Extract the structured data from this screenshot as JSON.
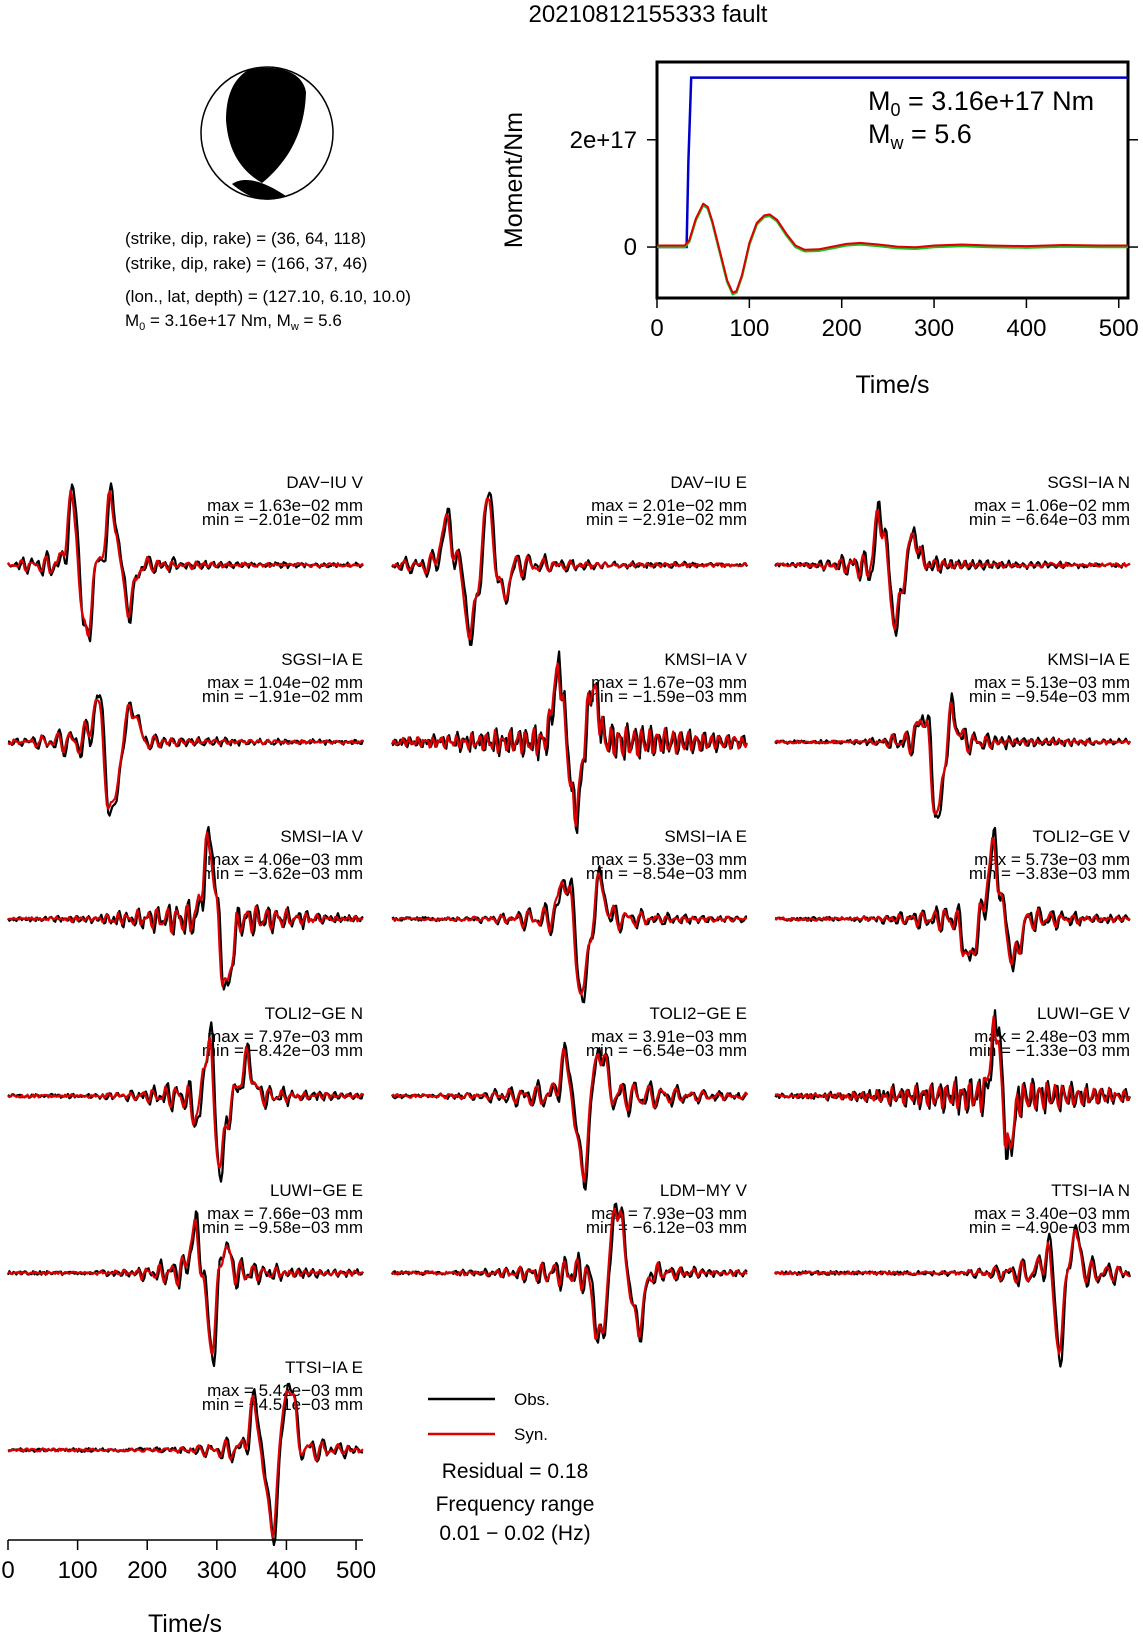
{
  "title": "20210812155333 fault",
  "source": {
    "nodal1": "(strike, dip, rake) = (36, 64, 118)",
    "nodal2": "(strike, dip, rake) = (166, 37, 46)",
    "location": "(lon., lat, depth) = (127.10, 6.10, 10.0)",
    "m0_label": "M",
    "m0_sub": "0",
    "m0_text": " = 3.16e+17 Nm, M",
    "mw_sub": "w",
    "mw_text": " = 5.6"
  },
  "legend": {
    "obs": "Obs.",
    "syn": "Syn.",
    "residual": "Residual = 0.18",
    "freq_title": "Frequency range",
    "freq_range": "0.01 − 0.02 (Hz)"
  },
  "colors": {
    "obs": "#000000",
    "syn": "#dd0000",
    "cumulative": "#0000cc",
    "rate_alt": "#22bb22"
  },
  "chart_data": [
    {
      "type": "line",
      "title": "",
      "xlabel": "Time/s",
      "ylabel": "Moment/Nm",
      "xlim": [
        0,
        510
      ],
      "ylim": [
        -9.5e+16,
        3.45e+17
      ],
      "xticks": [
        "0",
        "100",
        "200",
        "300",
        "400",
        "500"
      ],
      "yticks": [
        {
          "v": 0,
          "label": "0"
        },
        {
          "v": 2e+17,
          "label": "2e+17"
        }
      ],
      "annotation": {
        "m0_main": "M",
        "m0_sub": "0",
        "m0_rest": " = 3.16e+17 Nm",
        "mw_main": "M",
        "mw_sub": "w",
        "mw_rest": " = 5.6"
      },
      "series": [
        {
          "role": "cumulative",
          "x": [
            0,
            32,
            34,
            37,
            510
          ],
          "y": [
            0,
            0,
            1.6e+17,
            3.16e+17,
            3.16e+17
          ]
        },
        {
          "role": "rate",
          "x": [
            0,
            30,
            35,
            42,
            50,
            55,
            60,
            68,
            76,
            82,
            86,
            92,
            100,
            108,
            116,
            122,
            130,
            140,
            150,
            160,
            175,
            190,
            205,
            220,
            240,
            260,
            280,
            300,
            330,
            360,
            400,
            440,
            480,
            510
          ],
          "y": [
            0,
            0,
            1e+16,
            5e+16,
            7.8e+16,
            7.2e+16,
            4.5e+16,
            -1e+16,
            -6.5e+16,
            -8.8e+16,
            -8.5e+16,
            -5.5e+16,
            5000000000000000.0,
            4.2e+16,
            5.6e+16,
            5.8e+16,
            4.8e+16,
            2.2e+16,
            0.0,
            -8000000000000000.0,
            -7000000000000000.0,
            -2000000000000000.0,
            3000000000000000.0,
            5000000000000000.0,
            2000000000000000.0,
            -2000000000000000.0,
            -3000000000000000.0,
            0.0,
            2000000000000000.0,
            0.0,
            -1000000000000000.0,
            1000000000000000.0,
            0.0,
            0.0
          ]
        }
      ]
    },
    {
      "type": "line",
      "title": "",
      "xlabel": "Time/s",
      "xlim": [
        0,
        510
      ],
      "xticks": [
        "0",
        "100",
        "200",
        "300",
        "400",
        "500"
      ],
      "series": [
        {
          "name": "Obs."
        },
        {
          "name": "Syn."
        }
      ],
      "panels": [
        {
          "station": "DAV−IU V",
          "max": "max = 1.63e−02 mm",
          "min": "min = −2.01e−02 mm",
          "seed": 1,
          "c": 125,
          "w": 80,
          "f": 0.055,
          "spike": [
            {
              "t": 95,
              "a": 1.0
            },
            {
              "t": 112,
              "a": -1.1
            },
            {
              "t": 150,
              "a": 0.9
            },
            {
              "t": 175,
              "a": -0.6
            }
          ]
        },
        {
          "station": "DAV−IU E",
          "max": "max = 2.01e−02 mm",
          "min": "min = −2.91e−02 mm",
          "seed": 2,
          "c": 130,
          "w": 90,
          "f": 0.05,
          "spike": [
            {
              "t": 80,
              "a": 0.6
            },
            {
              "t": 115,
              "a": -1.0
            },
            {
              "t": 140,
              "a": 0.9
            },
            {
              "t": 160,
              "a": -0.5
            }
          ]
        },
        {
          "station": "SGSI−IA N",
          "max": "max = 1.06e−02 mm",
          "min": "min = −6.64e−03 mm",
          "seed": 3,
          "c": 160,
          "w": 60,
          "f": 0.06,
          "spike": [
            {
              "t": 145,
              "a": -0.5
            },
            {
              "t": 150,
              "a": 1.1
            },
            {
              "t": 175,
              "a": -0.8
            },
            {
              "t": 200,
              "a": 0.4
            }
          ]
        },
        {
          "station": "SGSI−IA E",
          "max": "max = 1.04e−02 mm",
          "min": "min = −1.91e−02 mm",
          "seed": 4,
          "c": 130,
          "w": 70,
          "f": 0.05,
          "spike": [
            {
              "t": 130,
              "a": 0.6
            },
            {
              "t": 150,
              "a": -1.1
            },
            {
              "t": 180,
              "a": 0.5
            }
          ]
        },
        {
          "station": "KMSI−IA V",
          "max": "max = 1.67e−03 mm",
          "min": "min = −1.59e−03 mm",
          "seed": 5,
          "c": 300,
          "w": 200,
          "f": 0.09,
          "spike": [
            {
              "t": 240,
              "a": 1.0
            },
            {
              "t": 265,
              "a": -1.0
            },
            {
              "t": 290,
              "a": 0.8
            }
          ]
        },
        {
          "station": "KMSI−IA E",
          "max": "max = 5.13e−03 mm",
          "min": "min = −9.54e−03 mm",
          "seed": 6,
          "c": 235,
          "w": 60,
          "f": 0.06,
          "spike": [
            {
              "t": 215,
              "a": 0.4
            },
            {
              "t": 235,
              "a": -1.1
            },
            {
              "t": 255,
              "a": 0.4
            }
          ]
        },
        {
          "station": "SMSI−IA V",
          "max": "max = 4.06e−03 mm",
          "min": "min = −3.62e−03 mm",
          "seed": 7,
          "c": 300,
          "w": 120,
          "f": 0.07,
          "spike": [
            {
              "t": 290,
              "a": 1.1
            },
            {
              "t": 315,
              "a": -1.0
            }
          ]
        },
        {
          "station": "SMSI−IA E",
          "max": "max = 5.33e−03 mm",
          "min": "min = −8.54e−03 mm",
          "seed": 8,
          "c": 270,
          "w": 80,
          "f": 0.05,
          "spike": [
            {
              "t": 250,
              "a": 0.6
            },
            {
              "t": 275,
              "a": -1.1
            },
            {
              "t": 300,
              "a": 0.5
            }
          ]
        },
        {
          "station": "TOLI2−GE V",
          "max": "max = 5.73e−03 mm",
          "min": "min = −3.83e−03 mm",
          "seed": 9,
          "c": 310,
          "w": 100,
          "f": 0.06,
          "spike": [
            {
              "t": 280,
              "a": -0.6
            },
            {
              "t": 315,
              "a": 1.0
            },
            {
              "t": 345,
              "a": -0.6
            }
          ]
        },
        {
          "station": "TOLI2−GE N",
          "max": "max = 7.97e−03 mm",
          "min": "min = −8.42e−03 mm",
          "seed": 10,
          "c": 300,
          "w": 90,
          "f": 0.06,
          "spike": [
            {
              "t": 275,
              "a": -0.4
            },
            {
              "t": 290,
              "a": 1.0
            },
            {
              "t": 305,
              "a": -1.1
            },
            {
              "t": 345,
              "a": 0.5
            }
          ]
        },
        {
          "station": "TOLI2−GE E",
          "max": "max = 3.91e−03 mm",
          "min": "min = −6.54e−03 mm",
          "seed": 11,
          "c": 300,
          "w": 120,
          "f": 0.05,
          "spike": [
            {
              "t": 250,
              "a": 0.5
            },
            {
              "t": 275,
              "a": -1.1
            },
            {
              "t": 300,
              "a": 0.7
            }
          ]
        },
        {
          "station": "LUWI−GE V",
          "max": "max = 2.48e−03 mm",
          "min": "min = −1.33e−03 mm",
          "seed": 12,
          "c": 330,
          "w": 160,
          "f": 0.09,
          "spike": [
            {
              "t": 320,
              "a": 1.1
            },
            {
              "t": 335,
              "a": -0.9
            }
          ]
        },
        {
          "station": "LUWI−GE E",
          "max": "max = 7.66e−03 mm",
          "min": "min = −9.58e−03 mm",
          "seed": 13,
          "c": 290,
          "w": 80,
          "f": 0.06,
          "spike": [
            {
              "t": 270,
              "a": 0.6
            },
            {
              "t": 295,
              "a": -1.1
            },
            {
              "t": 310,
              "a": 0.5
            }
          ]
        },
        {
          "station": "LDM−MY V",
          "max": "max = 7.93e−03 mm",
          "min": "min = −6.12e−03 mm",
          "seed": 14,
          "c": 300,
          "w": 100,
          "f": 0.06,
          "spike": [
            {
              "t": 300,
              "a": -1.0
            },
            {
              "t": 325,
              "a": 1.0
            },
            {
              "t": 355,
              "a": -0.8
            }
          ]
        },
        {
          "station": "TTSI−IA N",
          "max": "max = 3.40e−03 mm",
          "min": "min = −4.90e−03 mm",
          "seed": 15,
          "c": 410,
          "w": 80,
          "f": 0.05,
          "spike": [
            {
              "t": 395,
              "a": 0.4
            },
            {
              "t": 410,
              "a": -1.1
            },
            {
              "t": 430,
              "a": 0.6
            }
          ]
        },
        {
          "station": "TTSI−IA E",
          "max": "max = 5.42e−03 mm",
          "min": "min = −4.51e−03 mm",
          "seed": 16,
          "c": 380,
          "w": 80,
          "f": 0.05,
          "spike": [
            {
              "t": 355,
              "a": 0.6
            },
            {
              "t": 380,
              "a": -1.1
            },
            {
              "t": 405,
              "a": 1.0
            }
          ]
        }
      ]
    }
  ]
}
